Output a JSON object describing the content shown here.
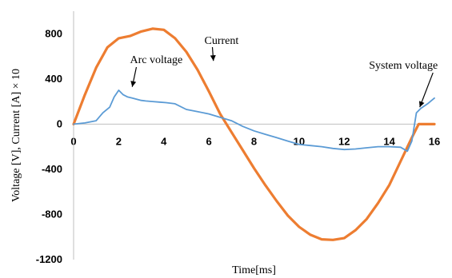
{
  "chart_data": {
    "type": "line",
    "title": "",
    "xlabel": "Time[ms]",
    "ylabel": "Voltage [V], Current [A] × 10",
    "xlim": [
      0,
      16
    ],
    "ylim": [
      -1200,
      1000
    ],
    "x_ticks": [
      "0",
      "2",
      "4",
      "6",
      "8",
      "10",
      "12",
      "14",
      "16"
    ],
    "y_ticks": [
      "800",
      "400",
      "0",
      "-400",
      "-800",
      "-1200"
    ],
    "grid": false,
    "legend": "none",
    "series": [
      {
        "name": "Current",
        "color": "#ED7D31",
        "x": [
          0,
          0.5,
          1,
          1.5,
          2,
          2.5,
          3,
          3.5,
          4,
          4.5,
          5,
          5.5,
          6,
          6.5,
          7,
          7.5,
          8,
          8.5,
          9,
          9.5,
          10,
          10.5,
          11,
          11.5,
          12,
          12.5,
          13,
          13.5,
          14,
          14.5,
          15,
          15.3,
          15.6,
          16
        ],
        "y": [
          0,
          260,
          500,
          680,
          760,
          780,
          820,
          845,
          835,
          760,
          640,
          480,
          290,
          90,
          -70,
          -230,
          -390,
          -540,
          -680,
          -810,
          -910,
          -980,
          -1020,
          -1025,
          -1010,
          -940,
          -840,
          -700,
          -540,
          -330,
          -120,
          0,
          0,
          0
        ]
      },
      {
        "name": "Arc voltage",
        "color": "#5B9BD5",
        "x": [
          0,
          0.5,
          1,
          1.3,
          1.6,
          1.8,
          2.0,
          2.2,
          2.4,
          2.6,
          2.8,
          3.0,
          3.2,
          3.5,
          3.8,
          4.1,
          4.5,
          5,
          5.5,
          6,
          6.5,
          7,
          7.5,
          8,
          8.5,
          9,
          9.5,
          10,
          10.5,
          11,
          11.5,
          12,
          12.5,
          13,
          13.5,
          14,
          14.5,
          14.8,
          15.0,
          15.2,
          15.4,
          15.7,
          16
        ],
        "y": [
          0,
          10,
          30,
          100,
          150,
          240,
          300,
          260,
          240,
          230,
          220,
          210,
          205,
          200,
          195,
          190,
          180,
          130,
          110,
          90,
          60,
          30,
          -20,
          -60,
          -90,
          -120,
          -150,
          -180,
          -190,
          -200,
          -215,
          -225,
          -220,
          -210,
          -200,
          -200,
          -205,
          -240,
          -150,
          100,
          140,
          180,
          230
        ]
      }
    ],
    "annotations": [
      {
        "text": "Current",
        "x": 5.8,
        "y": 710
      },
      {
        "text": "Arc voltage",
        "x": 2.5,
        "y": 540
      },
      {
        "text": "System voltage",
        "x": 13.1,
        "y": 490
      }
    ]
  }
}
